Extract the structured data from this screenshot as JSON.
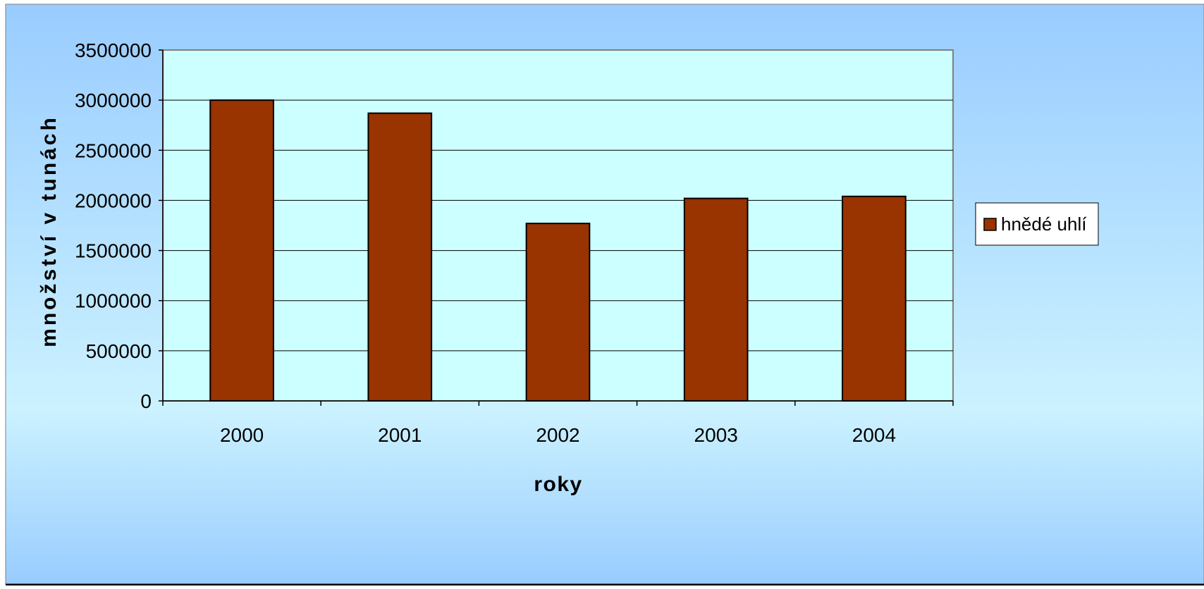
{
  "chart_data": {
    "type": "bar",
    "title": "",
    "xlabel": "roky",
    "ylabel": "množství v tunách",
    "categories": [
      "2000",
      "2001",
      "2002",
      "2003",
      "2004"
    ],
    "series": [
      {
        "name": "hnědé uhlí",
        "values": [
          3000000,
          2870000,
          1770000,
          2020000,
          2040000
        ],
        "color": "#993300"
      }
    ],
    "ylim": [
      0,
      3500000
    ],
    "y_ticks": [
      "0",
      "500000",
      "1000000",
      "1500000",
      "2000000",
      "2500000",
      "3000000",
      "3500000"
    ],
    "grid": true,
    "legend_position": "right",
    "colors": {
      "plot_background": "#ccffff",
      "gradient_top": "#99ccff",
      "gradient_middle": "#ccf2ff",
      "gradient_bottom": "#99ccff",
      "bar_outline": "#000000"
    }
  }
}
